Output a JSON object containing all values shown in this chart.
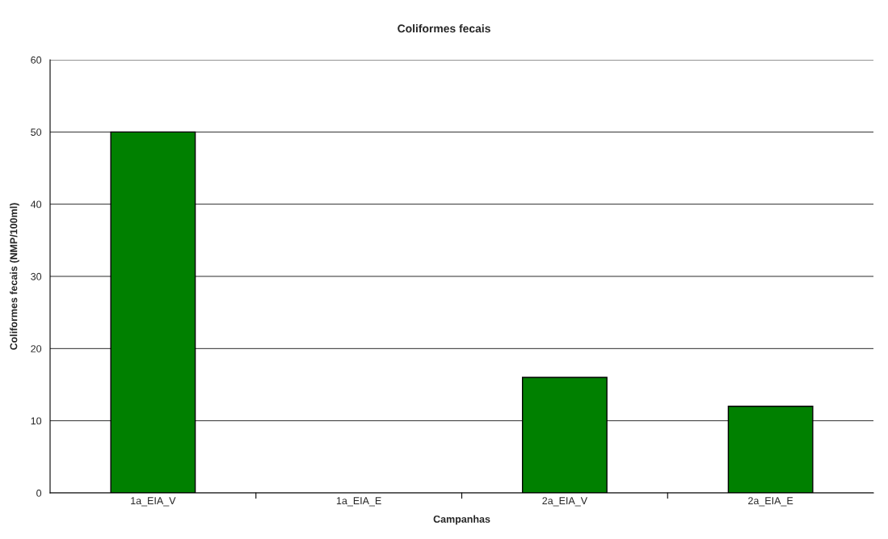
{
  "chart_data": {
    "type": "bar",
    "title": "Coliformes fecais",
    "xlabel": "Campanhas",
    "ylabel": "Coliformes fecais (NMP/100ml)",
    "categories": [
      "1a_EIA_V",
      "1a_EIA_E",
      "2a_EIA_V",
      "2a_EIA_E"
    ],
    "values": [
      50,
      null,
      16,
      12
    ],
    "color": "#008000",
    "ylim": [
      0,
      60
    ],
    "yticks": [
      0,
      10,
      20,
      30,
      40,
      50,
      60
    ],
    "grid": "y"
  }
}
